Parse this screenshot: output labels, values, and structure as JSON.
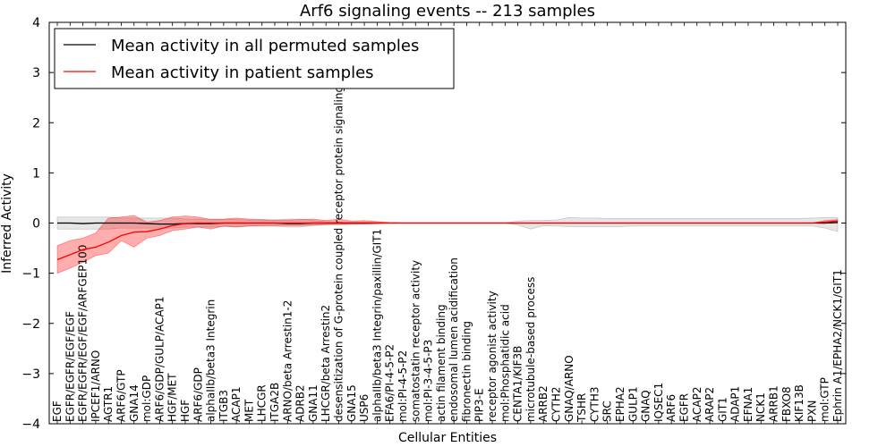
{
  "chart_data": {
    "type": "line",
    "title": "Arf6 signaling events -- 213 samples",
    "xlabel": "Cellular Entities",
    "ylabel": "Inferred Activity",
    "ylim": [
      -4,
      4
    ],
    "yticks": [
      -4,
      -3,
      -2,
      -1,
      0,
      1,
      2,
      3,
      4
    ],
    "legend_position": "top-left",
    "categories": [
      "EGF",
      "EGFR/EGFR/EGF/EGF",
      "EGFR/EGFR/EGF/EGF/ARFGEP100",
      "IPCEF1/ARNO",
      "AGTR1",
      "ARF6/GTP",
      "GNA14",
      "mol:GDP",
      "ARF6/GDP/GULP/ACAP1",
      "HGF/MET",
      "HGF",
      "ARF6/GDP",
      "alphaIIb/beta3 Integrin",
      "ITGB3",
      "ACAP1",
      "MET",
      "LHCGR",
      "ITGA2B",
      "ARNO/beta Arrestin1-2",
      "ADRB2",
      "GNA11",
      "LHCGR/beta Arrestin2",
      "desensitization of G-protein coupled receptor protein signaling pathway",
      "GNA15",
      "USP6",
      "alphaIIb/beta3 Integrin/paxillin/GIT1",
      "EFA6/PI-4-5-P2",
      "mol:PI-4-5-P2",
      "somatostatin receptor activity",
      "mol:PI-3-4-5-P3",
      "actin filament binding",
      "endosomal lumen acidification",
      "fibronectin binding",
      "PIP3-E",
      "receptor agonist activity",
      "mol:Phosphatidic acid",
      "CENTA1/KIF3B",
      "microtubule-based process",
      "ARRB2",
      "CYTH2",
      "GNAQ/ARNO",
      "TSHR",
      "CYTH3",
      "SRC",
      "EPHA2",
      "GULP1",
      "GNAQ",
      "IQSEC1",
      "ARF6",
      "EGFR",
      "ACAP2",
      "ARAP2",
      "GIT1",
      "ADAP1",
      "EFNA1",
      "NCK1",
      "ARRB1",
      "FBXO8",
      "KIF13B",
      "PXN",
      "mol:GTP",
      "Ephrin A1/EPHA2/NCK1/GIT1"
    ],
    "series": [
      {
        "name": "Mean activity in all permuted samples",
        "color": "#000000",
        "values": [
          0.0,
          0.0,
          -0.01,
          0.0,
          0.0,
          0.0,
          0.0,
          -0.01,
          -0.02,
          -0.02,
          -0.01,
          -0.01,
          -0.01,
          0.0,
          0.0,
          0.0,
          0.0,
          0.0,
          -0.01,
          -0.01,
          0.0,
          0.0,
          0.0,
          0.0,
          0.0,
          0.0,
          0.0,
          0.0,
          0.0,
          0.0,
          0.0,
          0.0,
          0.0,
          0.0,
          0.0,
          0.0,
          0.0,
          0.0,
          0.0,
          0.0,
          0.0,
          0.0,
          0.0,
          0.0,
          0.0,
          0.0,
          0.0,
          0.0,
          0.0,
          0.0,
          0.0,
          0.0,
          0.0,
          0.0,
          0.0,
          0.0,
          0.0,
          0.0,
          0.0,
          0.0,
          0.0,
          0.01
        ],
        "band_lower": [
          -0.12,
          -0.12,
          -0.12,
          -0.12,
          -0.12,
          -0.1,
          -0.1,
          -0.1,
          -0.1,
          -0.1,
          -0.08,
          -0.08,
          -0.08,
          -0.07,
          -0.07,
          -0.06,
          -0.06,
          -0.06,
          -0.08,
          -0.08,
          -0.05,
          -0.03,
          -0.02,
          -0.02,
          -0.02,
          -0.01,
          0.0,
          0.0,
          0.0,
          0.0,
          0.0,
          0.0,
          0.0,
          0.0,
          0.0,
          0.0,
          -0.04,
          -0.12,
          -0.05,
          -0.06,
          -0.07,
          -0.07,
          -0.07,
          -0.07,
          -0.07,
          -0.06,
          -0.06,
          -0.06,
          -0.06,
          -0.06,
          -0.06,
          -0.06,
          -0.06,
          -0.06,
          -0.06,
          -0.06,
          -0.06,
          -0.06,
          -0.06,
          -0.06,
          -0.1,
          -0.17
        ],
        "band_upper": [
          0.12,
          0.12,
          0.12,
          0.12,
          0.12,
          0.1,
          0.1,
          0.1,
          0.1,
          0.1,
          0.08,
          0.08,
          0.08,
          0.07,
          0.07,
          0.06,
          0.06,
          0.06,
          0.08,
          0.08,
          0.05,
          0.03,
          0.02,
          0.02,
          0.02,
          0.01,
          0.0,
          0.0,
          0.0,
          0.0,
          0.0,
          0.0,
          0.0,
          0.0,
          0.0,
          0.0,
          0.04,
          0.05,
          0.05,
          0.06,
          0.11,
          0.1,
          0.1,
          0.09,
          0.09,
          0.09,
          0.09,
          0.09,
          0.09,
          0.09,
          0.09,
          0.09,
          0.09,
          0.09,
          0.09,
          0.09,
          0.09,
          0.09,
          0.09,
          0.1,
          0.11,
          0.11
        ]
      },
      {
        "name": "Mean activity in patient samples",
        "color": "#ff0000",
        "values": [
          -0.73,
          -0.63,
          -0.53,
          -0.48,
          -0.38,
          -0.25,
          -0.18,
          -0.17,
          -0.12,
          -0.05,
          -0.01,
          0.0,
          0.0,
          0.0,
          0.0,
          0.0,
          0.0,
          0.0,
          0.0,
          0.0,
          0.0,
          0.0,
          0.0,
          0.0,
          0.0,
          0.0,
          0.0,
          0.0,
          0.0,
          0.0,
          0.0,
          0.0,
          0.0,
          0.0,
          0.0,
          0.0,
          0.0,
          0.0,
          0.0,
          0.0,
          0.0,
          0.0,
          0.0,
          0.0,
          0.0,
          0.0,
          0.0,
          0.0,
          0.0,
          0.0,
          0.0,
          0.0,
          0.0,
          0.0,
          0.0,
          0.0,
          0.0,
          0.0,
          0.0,
          0.0,
          0.02,
          0.04
        ],
        "band_lower": [
          -1.0,
          -0.9,
          -0.78,
          -0.65,
          -0.6,
          -0.35,
          -0.48,
          -0.3,
          -0.25,
          -0.15,
          -0.12,
          -0.08,
          -0.12,
          -0.06,
          -0.08,
          -0.06,
          -0.05,
          -0.05,
          -0.05,
          -0.05,
          -0.04,
          -0.03,
          -0.03,
          -0.02,
          -0.02,
          -0.01,
          0.0,
          0.0,
          0.0,
          0.0,
          0.0,
          0.0,
          0.0,
          0.0,
          0.0,
          0.0,
          0.0,
          0.0,
          0.0,
          0.0,
          0.0,
          0.0,
          0.0,
          0.0,
          0.0,
          0.0,
          0.0,
          0.0,
          0.0,
          0.0,
          0.0,
          0.0,
          0.0,
          0.0,
          0.0,
          0.0,
          0.0,
          0.0,
          0.0,
          0.0,
          -0.01,
          0.02
        ],
        "band_upper": [
          -0.45,
          -0.35,
          -0.3,
          -0.2,
          0.1,
          0.12,
          0.15,
          0.02,
          0.05,
          0.12,
          0.14,
          0.12,
          0.07,
          0.08,
          0.1,
          0.08,
          0.07,
          0.06,
          0.06,
          0.07,
          0.08,
          0.05,
          0.08,
          0.04,
          0.05,
          0.03,
          0.01,
          0.0,
          0.0,
          0.0,
          0.0,
          0.0,
          0.0,
          0.0,
          0.0,
          0.0,
          0.0,
          0.0,
          0.0,
          0.0,
          0.0,
          0.0,
          0.0,
          0.0,
          0.0,
          0.0,
          0.0,
          0.0,
          0.0,
          0.0,
          0.0,
          0.0,
          0.0,
          0.0,
          0.0,
          0.0,
          0.0,
          0.0,
          0.0,
          0.0,
          0.05,
          0.07
        ]
      }
    ]
  }
}
